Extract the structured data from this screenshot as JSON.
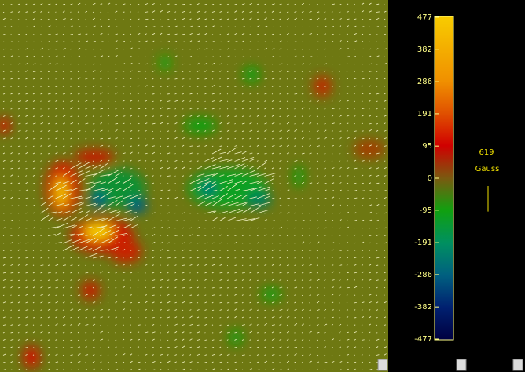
{
  "colorbar": {
    "lim": [
      -477,
      477
    ],
    "ticks": [
      477,
      382,
      286,
      191,
      95,
      0,
      -95,
      -191,
      -286,
      -382,
      -477
    ]
  },
  "scale": {
    "value": 619,
    "unit": "Gauss"
  }
}
